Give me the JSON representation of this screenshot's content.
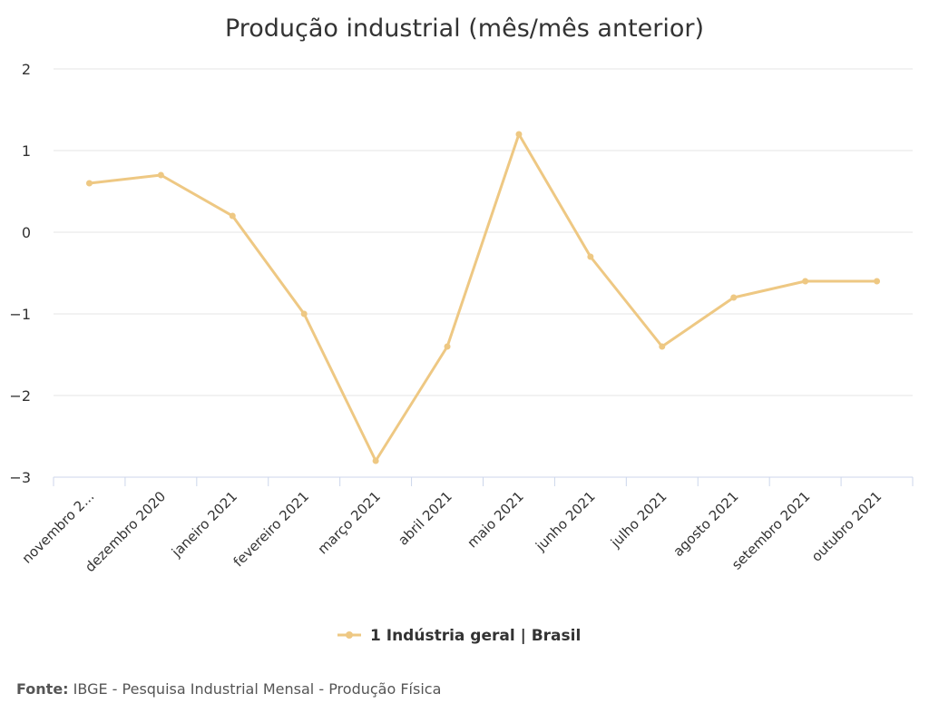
{
  "chart_data": {
    "type": "line",
    "title": "Produção industrial (mês/mês anterior)",
    "xlabel": "",
    "ylabel": "",
    "categories": [
      "novembro 2...",
      "dezembro 2020",
      "janeiro 2021",
      "fevereiro 2021",
      "março 2021",
      "abril 2021",
      "maio 2021",
      "junho 2021",
      "julho 2021",
      "agosto 2021",
      "setembro 2021",
      "outubro 2021"
    ],
    "series": [
      {
        "name": "1 Indústria geral | Brasil",
        "values": [
          0.6,
          0.7,
          0.2,
          -1.0,
          -2.8,
          -1.4,
          1.2,
          -0.3,
          -1.4,
          -0.8,
          -0.6,
          -0.6
        ],
        "color": "#eec883"
      }
    ],
    "ylim": [
      -3,
      2
    ],
    "yticks": [
      2,
      1,
      0,
      -1,
      -2,
      -3
    ],
    "ytick_labels": [
      "2",
      "1",
      "0",
      "−1",
      "−2",
      "−3"
    ],
    "grid": true,
    "legend_position": "bottom-center"
  },
  "source": {
    "label": "Fonte:",
    "text": " IBGE - Pesquisa Industrial Mensal - Produção Física"
  },
  "colors": {
    "grid": "#e6e6e6",
    "axis": "#ccd6eb",
    "line": "#eec883"
  }
}
